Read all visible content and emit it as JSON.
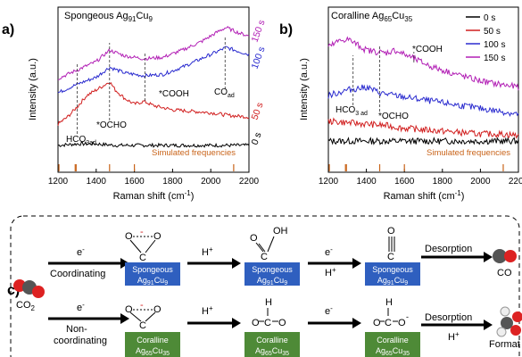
{
  "panels": {
    "a": {
      "letter": "a)",
      "title_main": "Spongeous Ag",
      "title_sub1": "91",
      "title_mid": "Cu",
      "title_sub2": "9",
      "xlabel": "Raman shift (cm",
      "xlabel_sup": "-1",
      "xlabel_end": ")",
      "ylabel": "Intensity (a.u.)",
      "time_labels": [
        "150 s",
        "100 s",
        "50 s",
        "0 s"
      ],
      "annotations": {
        "hco3": "HCO",
        "hco3_sub": "3",
        "hco3_ad": "ad",
        "ocho": "*OCHO",
        "cooh": "*COOH",
        "co": "CO",
        "co_sub": "ad"
      },
      "simulated_label": "Simulated frequencies"
    },
    "b": {
      "letter": "b)",
      "title_main": "Coralline Ag",
      "title_sub1": "65",
      "title_mid": "Cu",
      "title_sub2": "35",
      "xlabel": "Raman shift (cm",
      "xlabel_sup": "-1",
      "xlabel_end": ")",
      "ylabel": "Intensity (a.u.)",
      "legend": [
        "0 s",
        "50 s",
        "100 s",
        "150 s"
      ],
      "annotations": {
        "hco3": "HCO",
        "hco3_sub": "3 ad",
        "ocho": "*OCHO",
        "cooh": "*COOH"
      },
      "simulated_label": "Simulated frequencies"
    },
    "c": {
      "letter": "c)",
      "co2": "CO",
      "co2_sub": "2",
      "electron": "e",
      "electron_sup": "-",
      "proton": "H",
      "proton_sup": "+",
      "coordinating": "Coordinating",
      "non1": "Non-",
      "non2": "coordinating",
      "desorption": "Desorption",
      "product_top": "CO",
      "product_bottom": "Format",
      "oh": "OH",
      "o_label": "O",
      "h_label": "H",
      "spong_box": "Spongeous",
      "spong_sub_a": "Ag",
      "spong_sub_b": "91",
      "spong_sub_c": "Cu",
      "spong_sub_d": "9",
      "coral_box": "Coralline",
      "coral_sub_a": "Ag",
      "coral_sub_b": "65",
      "coral_sub_c": "Cu",
      "coral_sub_d": "35"
    }
  },
  "chart_data": [
    {
      "type": "line",
      "title": "Spongeous Ag91Cu9",
      "xlabel": "Raman shift (cm-1)",
      "ylabel": "Intensity (a.u.)",
      "xlim": [
        1200,
        2200
      ],
      "xticks": [
        1200,
        1400,
        1600,
        1800,
        2000,
        2200
      ],
      "series": [
        {
          "name": "0 s",
          "color": "#000000",
          "x": [
            1200,
            1300,
            1400,
            1500,
            1600,
            1700,
            1800,
            1900,
            2000,
            2100,
            2200
          ],
          "y": [
            0.05,
            0.06,
            0.06,
            0.05,
            0.05,
            0.05,
            0.05,
            0.05,
            0.05,
            0.05,
            0.05
          ]
        },
        {
          "name": "50 s",
          "color": "#d11f1f",
          "x": [
            1200,
            1250,
            1300,
            1350,
            1400,
            1450,
            1470,
            1500,
            1550,
            1600,
            1650,
            1700,
            1800,
            1900,
            2000,
            2100,
            2200
          ],
          "y": [
            0.2,
            0.25,
            0.32,
            0.4,
            0.44,
            0.48,
            0.5,
            0.44,
            0.38,
            0.34,
            0.36,
            0.33,
            0.3,
            0.29,
            0.28,
            0.26,
            0.25
          ]
        },
        {
          "name": "100 s",
          "color": "#2a2bcf",
          "x": [
            1200,
            1300,
            1400,
            1470,
            1550,
            1650,
            1750,
            1850,
            1950,
            2050,
            2080,
            2150,
            2200
          ],
          "y": [
            0.42,
            0.48,
            0.53,
            0.6,
            0.56,
            0.54,
            0.55,
            0.6,
            0.66,
            0.72,
            0.74,
            0.71,
            0.69
          ]
        },
        {
          "name": "150 s",
          "color": "#b21fb5",
          "x": [
            1200,
            1300,
            1400,
            1470,
            1550,
            1650,
            1750,
            1850,
            1950,
            2050,
            2080,
            2150,
            2200
          ],
          "y": [
            0.52,
            0.58,
            0.64,
            0.72,
            0.68,
            0.66,
            0.67,
            0.72,
            0.78,
            0.86,
            0.88,
            0.84,
            0.82
          ]
        }
      ],
      "simulated_frequencies": [
        1205,
        1290,
        1295,
        1470,
        1600,
        2120
      ],
      "annotations": [
        "HCO3 ad",
        "*OCHO",
        "*COOH",
        "COad"
      ]
    },
    {
      "type": "line",
      "title": "Coralline Ag65Cu35",
      "xlabel": "Raman shift (cm-1)",
      "ylabel": "Intensity (a.u.)",
      "xlim": [
        1200,
        2200
      ],
      "xticks": [
        1200,
        1400,
        1600,
        1800,
        2000,
        2200
      ],
      "legend_position": "top-right",
      "series": [
        {
          "name": "0 s",
          "color": "#000000",
          "x": [
            1200,
            1300,
            1400,
            1500,
            1600,
            1700,
            1800,
            1900,
            2000,
            2100,
            2200
          ],
          "y": [
            0.08,
            0.08,
            0.08,
            0.08,
            0.08,
            0.08,
            0.08,
            0.08,
            0.08,
            0.08,
            0.08
          ]
        },
        {
          "name": "50 s",
          "color": "#d11f1f",
          "x": [
            1200,
            1300,
            1400,
            1500,
            1600,
            1700,
            1800,
            1900,
            2000,
            2100,
            2200
          ],
          "y": [
            0.22,
            0.21,
            0.2,
            0.19,
            0.17,
            0.16,
            0.15,
            0.14,
            0.13,
            0.13,
            0.12
          ]
        },
        {
          "name": "100 s",
          "color": "#2a2bcf",
          "x": [
            1200,
            1300,
            1400,
            1470,
            1550,
            1650,
            1750,
            1850,
            1950,
            2050,
            2150,
            2200
          ],
          "y": [
            0.4,
            0.44,
            0.46,
            0.42,
            0.4,
            0.38,
            0.36,
            0.34,
            0.32,
            0.3,
            0.28,
            0.27
          ]
        },
        {
          "name": "150 s",
          "color": "#b21fb5",
          "x": [
            1200,
            1250,
            1300,
            1350,
            1400,
            1500,
            1550,
            1650,
            1750,
            1850,
            1950,
            2050,
            2150,
            2200
          ],
          "y": [
            0.74,
            0.78,
            0.8,
            0.76,
            0.72,
            0.7,
            0.72,
            0.66,
            0.6,
            0.56,
            0.52,
            0.49,
            0.47,
            0.46
          ]
        }
      ],
      "simulated_frequencies": [
        1205,
        1290,
        1295,
        1470,
        1600,
        2120
      ],
      "annotations": [
        "HCO3 ad",
        "*OCHO",
        "*COOH"
      ]
    }
  ],
  "colors": {
    "spongeous": "#2f5fbf",
    "coralline": "#4e8a37",
    "sim": "#c9641a",
    "arrow": "#000000"
  }
}
